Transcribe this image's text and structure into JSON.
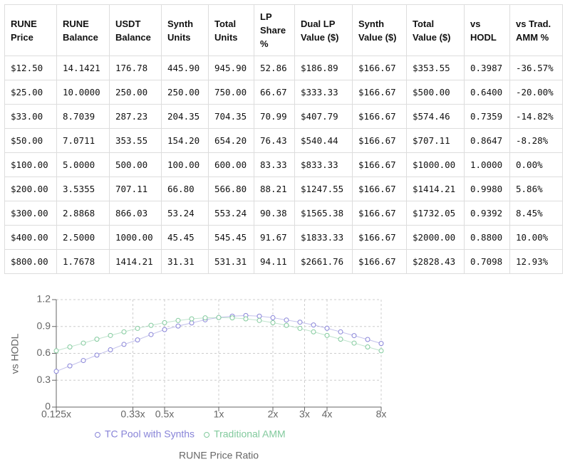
{
  "table": {
    "headers": [
      "RUNE Price",
      "RUNE Balance",
      "USDT Balance",
      "Synth Units",
      "Total Units",
      "LP Share %",
      "Dual LP Value ($)",
      "Synth Value ($)",
      "Total Value ($)",
      "vs HODL",
      "vs Trad. AMM %"
    ],
    "rows": [
      [
        "$12.50",
        "14.1421",
        "176.78",
        "445.90",
        "945.90",
        "52.86",
        "$186.89",
        "$166.67",
        "$353.55",
        "0.3987",
        "-36.57%"
      ],
      [
        "$25.00",
        "10.0000",
        "250.00",
        "250.00",
        "750.00",
        "66.67",
        "$333.33",
        "$166.67",
        "$500.00",
        "0.6400",
        "-20.00%"
      ],
      [
        "$33.00",
        "8.7039",
        "287.23",
        "204.35",
        "704.35",
        "70.99",
        "$407.79",
        "$166.67",
        "$574.46",
        "0.7359",
        "-14.82%"
      ],
      [
        "$50.00",
        "7.0711",
        "353.55",
        "154.20",
        "654.20",
        "76.43",
        "$540.44",
        "$166.67",
        "$707.11",
        "0.8647",
        "-8.28%"
      ],
      [
        "$100.00",
        "5.0000",
        "500.00",
        "100.00",
        "600.00",
        "83.33",
        "$833.33",
        "$166.67",
        "$1000.00",
        "1.0000",
        "0.00%"
      ],
      [
        "$200.00",
        "3.5355",
        "707.11",
        "66.80",
        "566.80",
        "88.21",
        "$1247.55",
        "$166.67",
        "$1414.21",
        "0.9980",
        "5.86%"
      ],
      [
        "$300.00",
        "2.8868",
        "866.03",
        "53.24",
        "553.24",
        "90.38",
        "$1565.38",
        "$166.67",
        "$1732.05",
        "0.9392",
        "8.45%"
      ],
      [
        "$400.00",
        "2.5000",
        "1000.00",
        "45.45",
        "545.45",
        "91.67",
        "$1833.33",
        "$166.67",
        "$2000.00",
        "0.8800",
        "10.00%"
      ],
      [
        "$800.00",
        "1.7678",
        "1414.21",
        "31.31",
        "531.31",
        "94.11",
        "$2661.76",
        "$166.67",
        "$2828.43",
        "0.7098",
        "12.93%"
      ]
    ]
  },
  "chart_data": {
    "type": "line",
    "xlabel": "RUNE Price Ratio",
    "ylabel": "vs HODL",
    "x": [
      0.125,
      0.1487,
      0.1768,
      0.2102,
      0.25,
      0.2973,
      0.3536,
      0.4204,
      0.5,
      0.5946,
      0.7071,
      0.8409,
      1,
      1.1892,
      1.4142,
      1.6818,
      2,
      2.3784,
      2.8284,
      3.3636,
      4,
      4.7568,
      5.6569,
      6.7272,
      8
    ],
    "series": [
      {
        "name": "TC Pool with Synths",
        "color": "#8884d8",
        "values": [
          0.399,
          0.46,
          0.52,
          0.58,
          0.64,
          0.7,
          0.75,
          0.81,
          0.865,
          0.905,
          0.94,
          0.975,
          1.0,
          1.015,
          1.022,
          1.015,
          0.998,
          0.972,
          0.948,
          0.917,
          0.88,
          0.84,
          0.798,
          0.755,
          0.71
        ]
      },
      {
        "name": "Traditional AMM",
        "color": "#82ca9d",
        "values": [
          0.6285,
          0.6717,
          0.7147,
          0.7577,
          0.8,
          0.8401,
          0.8787,
          0.9131,
          0.9428,
          0.9671,
          0.9852,
          0.9963,
          1.0,
          0.9963,
          0.9852,
          0.9671,
          0.9428,
          0.9131,
          0.8787,
          0.8401,
          0.8,
          0.7577,
          0.7147,
          0.6717,
          0.6285
        ]
      }
    ],
    "xscale": "log",
    "xlim": [
      0.125,
      8
    ],
    "xticks": [
      {
        "value": 0.125,
        "label": "0.125x"
      },
      {
        "value": 0.3333,
        "label": "0.33x"
      },
      {
        "value": 0.5,
        "label": "0.5x"
      },
      {
        "value": 1,
        "label": "1x"
      },
      {
        "value": 2,
        "label": "2x"
      },
      {
        "value": 3,
        "label": "3x"
      },
      {
        "value": 4,
        "label": "4x"
      },
      {
        "value": 8,
        "label": "8x"
      }
    ],
    "ylim": [
      0,
      1.2
    ],
    "yticks": [
      0,
      0.3,
      0.6,
      0.9,
      1.2
    ],
    "grid": true,
    "legend": "bottom"
  }
}
